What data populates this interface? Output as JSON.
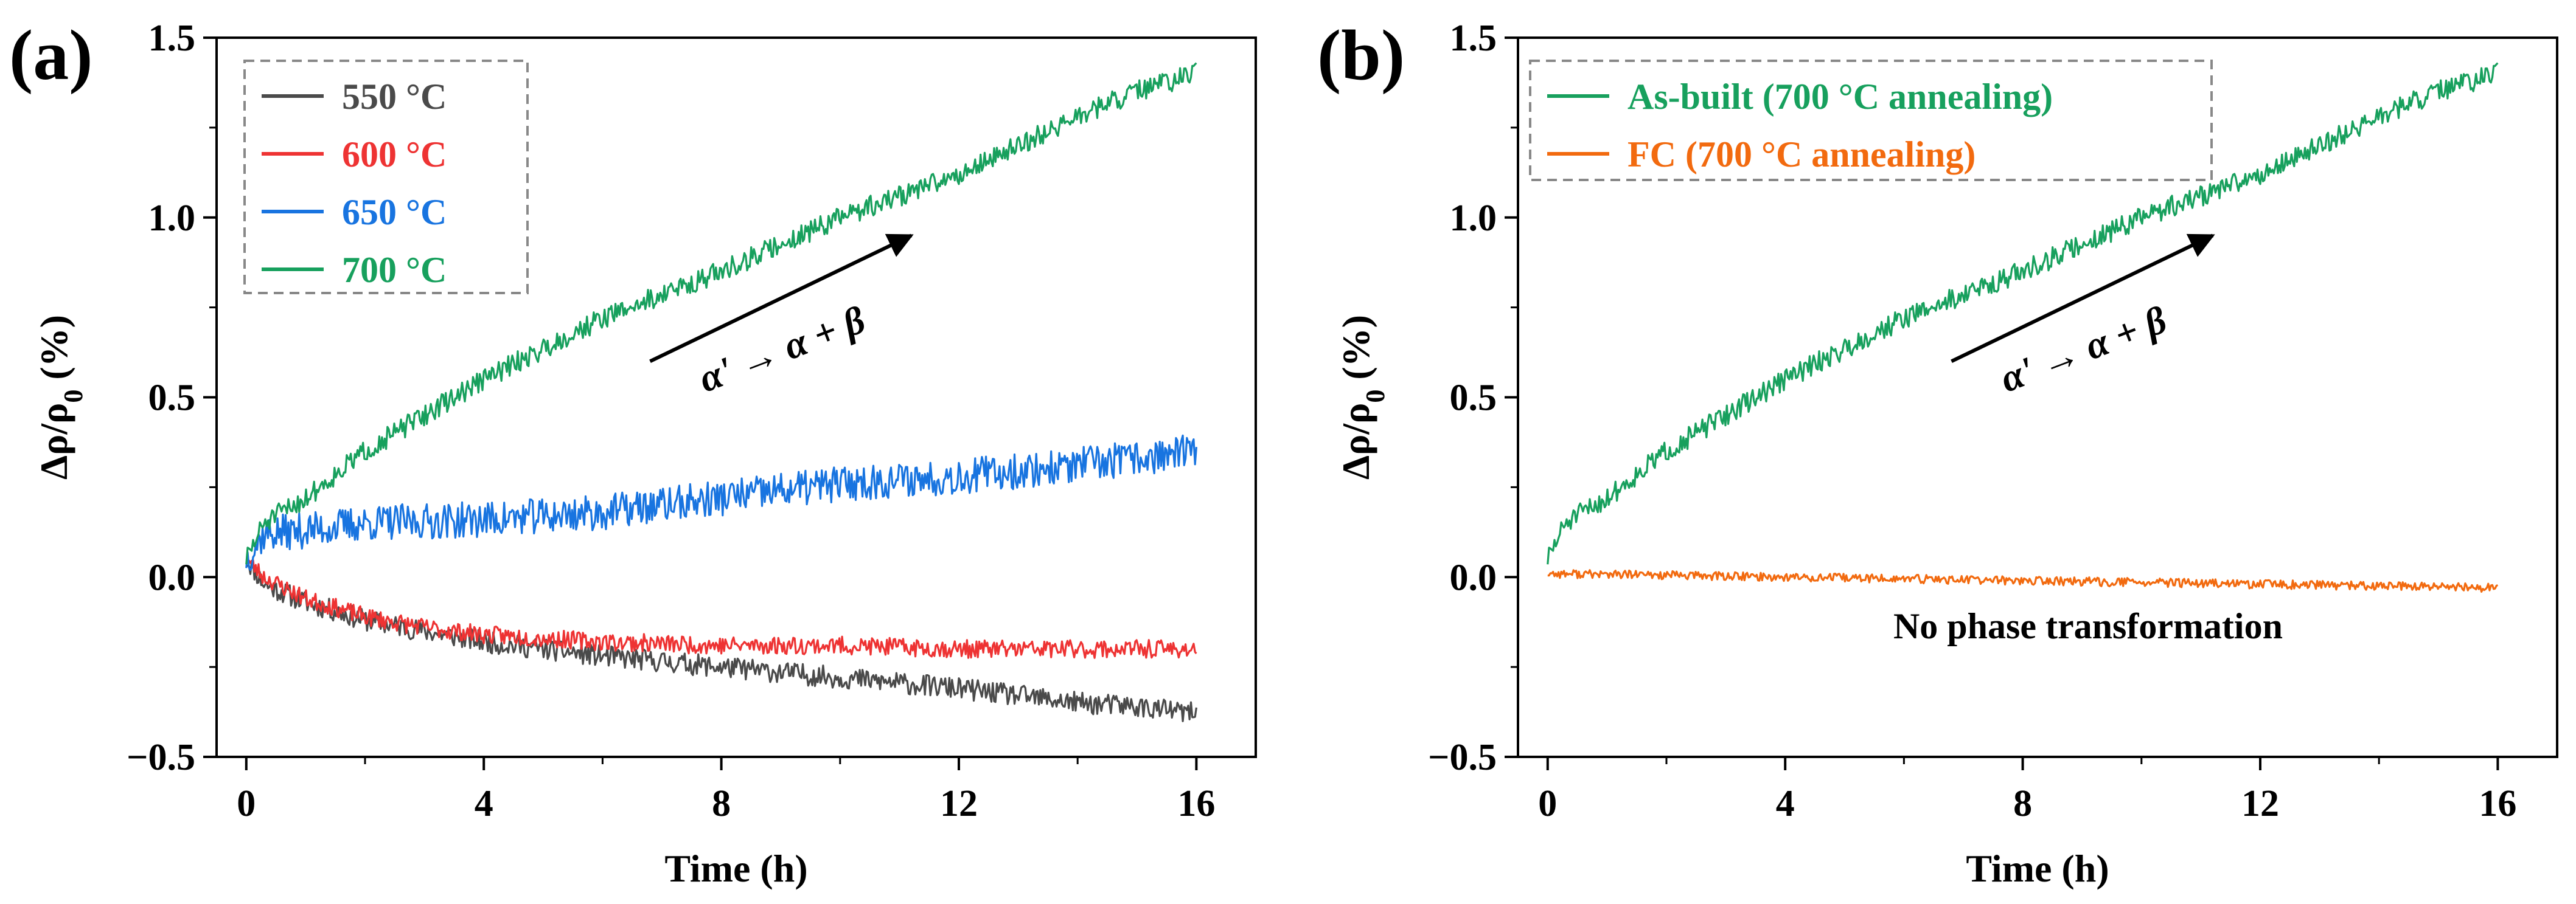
{
  "chart_data": [
    {
      "panel_label": "(a)",
      "type": "line",
      "xlabel": "Time (h)",
      "ylabel": "Δρ/ρ0 (%)",
      "ylabel_main": "Δρ/ρ",
      "ylabel_sub": "0",
      "ylabel_tail": " (%)",
      "xlim": [
        -0.5,
        17
      ],
      "ylim": [
        -0.5,
        1.5
      ],
      "xticks": [
        0,
        4,
        8,
        12,
        16
      ],
      "xtick_labels": [
        "0",
        "4",
        "8",
        "12",
        "16"
      ],
      "yticks": [
        -0.5,
        0.0,
        0.5,
        1.0,
        1.5
      ],
      "ytick_labels": [
        "−0.5",
        "0.0",
        "0.5",
        "1.0",
        "1.5"
      ],
      "grid": false,
      "legend_position": "top-left",
      "series": [
        {
          "name": "550 °C",
          "color": "#4a4a4a",
          "noise": 0.03,
          "seed": 11,
          "x": [
            0,
            0.3,
            1,
            2,
            3,
            4,
            6,
            8,
            10,
            12,
            14,
            15,
            16
          ],
          "y": [
            0.05,
            -0.02,
            -0.07,
            -0.12,
            -0.15,
            -0.18,
            -0.22,
            -0.25,
            -0.28,
            -0.31,
            -0.35,
            -0.36,
            -0.38
          ]
        },
        {
          "name": "600 °C",
          "color": "#ee3333",
          "noise": 0.025,
          "seed": 23,
          "x": [
            0,
            0.3,
            1,
            2,
            3,
            4,
            6,
            8,
            10,
            12,
            14,
            16
          ],
          "y": [
            0.05,
            0.0,
            -0.06,
            -0.11,
            -0.14,
            -0.16,
            -0.18,
            -0.19,
            -0.19,
            -0.2,
            -0.2,
            -0.2
          ]
        },
        {
          "name": "650 °C",
          "color": "#1874e0",
          "noise": 0.05,
          "seed": 37,
          "x": [
            0,
            0.3,
            1,
            2,
            4,
            6,
            8,
            10,
            12,
            14,
            16
          ],
          "y": [
            0.05,
            0.12,
            0.13,
            0.15,
            0.16,
            0.18,
            0.22,
            0.26,
            0.28,
            0.31,
            0.35
          ]
        },
        {
          "name": "700 °C",
          "color": "#17a05d",
          "noise": 0.03,
          "seed": 51,
          "x": [
            0,
            0.3,
            0.6,
            1,
            2,
            4,
            6,
            8,
            10,
            12,
            14,
            15,
            16
          ],
          "y": [
            0.05,
            0.15,
            0.18,
            0.22,
            0.35,
            0.55,
            0.72,
            0.85,
            1.0,
            1.12,
            1.28,
            1.35,
            1.4
          ]
        }
      ],
      "annotation": {
        "text": "α' → α + β",
        "from": [
          6.8,
          0.6
        ],
        "to": [
          11.2,
          0.95
        ],
        "text_pos": [
          9.1,
          0.6
        ],
        "rotation": -21
      }
    },
    {
      "panel_label": "(b)",
      "type": "line",
      "xlabel": "Time (h)",
      "ylabel": "Δρ/ρ0 (%)",
      "ylabel_main": "Δρ/ρ",
      "ylabel_sub": "0",
      "ylabel_tail": " (%)",
      "xlim": [
        -0.5,
        17
      ],
      "ylim": [
        -0.5,
        1.5
      ],
      "xticks": [
        0,
        4,
        8,
        12,
        16
      ],
      "xtick_labels": [
        "0",
        "4",
        "8",
        "12",
        "16"
      ],
      "yticks": [
        -0.5,
        0.0,
        0.5,
        1.0,
        1.5
      ],
      "ytick_labels": [
        "−0.5",
        "0.0",
        "0.5",
        "1.0",
        "1.5"
      ],
      "grid": false,
      "legend_position": "top-left",
      "series": [
        {
          "name": "As-built (700 °C annealing)",
          "color": "#17a05d",
          "noise": 0.03,
          "seed": 51,
          "x": [
            0,
            0.3,
            0.6,
            1,
            2,
            4,
            6,
            8,
            10,
            12,
            14,
            15,
            16
          ],
          "y": [
            0.05,
            0.15,
            0.18,
            0.22,
            0.35,
            0.55,
            0.72,
            0.85,
            1.0,
            1.12,
            1.28,
            1.35,
            1.4
          ]
        },
        {
          "name": "FC (700 °C annealing)",
          "color": "#f26a0f",
          "noise": 0.012,
          "seed": 77,
          "x": [
            0,
            4,
            8,
            12,
            16
          ],
          "y": [
            0.01,
            0.0,
            -0.01,
            -0.02,
            -0.03
          ]
        }
      ],
      "annotation": {
        "text": "α' → α + β",
        "from": [
          6.8,
          0.6
        ],
        "to": [
          11.2,
          0.95
        ],
        "text_pos": [
          9.1,
          0.6
        ],
        "rotation": -21
      },
      "note": "No phase transformation"
    }
  ]
}
